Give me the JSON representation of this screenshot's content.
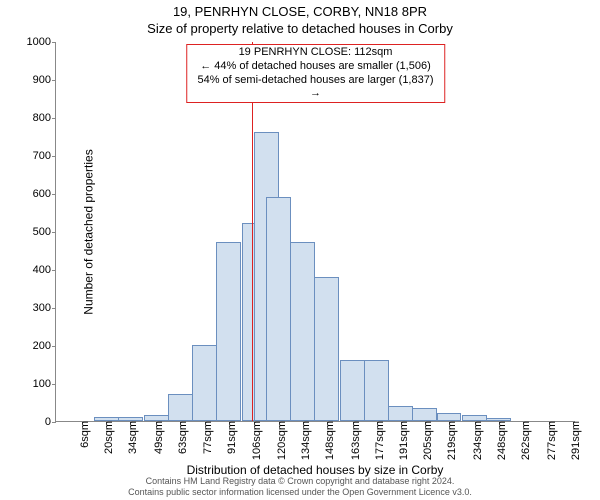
{
  "title_line1": "19, PENRHYN CLOSE, CORBY, NN18 8PR",
  "title_line2": "Size of property relative to detached houses in Corby",
  "ylabel": "Number of detached properties",
  "xlabel": "Distribution of detached houses by size in Corby",
  "footer_line1": "Contains HM Land Registry data © Crown copyright and database right 2024.",
  "footer_line2": "Contains public sector information licensed under the Open Government Licence v3.0.",
  "annotation": {
    "line1": "19 PENRHYN CLOSE: 112sqm",
    "line2": "← 44% of detached houses are smaller (1,506)",
    "line3": "54% of semi-detached houses are larger (1,837) →"
  },
  "colors": {
    "bar_fill": "#d2e0ef",
    "bar_edge": "#6b8fbf",
    "ref_line": "#d22",
    "axis": "#888",
    "text": "#000000",
    "background": "#ffffff"
  },
  "chart": {
    "type": "histogram",
    "ylim": [
      0,
      1000
    ],
    "ytick_step": 100,
    "yticks": [
      0,
      100,
      200,
      300,
      400,
      500,
      600,
      700,
      800,
      900,
      1000
    ],
    "ref_line_x": 112,
    "title_fontsize": 13,
    "label_fontsize": 12,
    "tick_fontsize": 11,
    "annotation_fontsize": 11,
    "footer_fontsize": 9,
    "bin_width": 14.5,
    "bins": [
      {
        "x": 6,
        "count": 0,
        "label": "6sqm"
      },
      {
        "x": 20,
        "count": 10,
        "label": "20sqm"
      },
      {
        "x": 34,
        "count": 10,
        "label": "34sqm"
      },
      {
        "x": 49,
        "count": 15,
        "label": "49sqm"
      },
      {
        "x": 63,
        "count": 70,
        "label": "63sqm"
      },
      {
        "x": 77,
        "count": 200,
        "label": "77sqm"
      },
      {
        "x": 91,
        "count": 470,
        "label": "91sqm"
      },
      {
        "x": 106,
        "count": 520,
        "label": "106sqm"
      },
      {
        "x": 113,
        "count": 760,
        "label": null
      },
      {
        "x": 120,
        "count": 590,
        "label": "120sqm"
      },
      {
        "x": 134,
        "count": 470,
        "label": "134sqm"
      },
      {
        "x": 148,
        "count": 380,
        "label": "148sqm"
      },
      {
        "x": 163,
        "count": 160,
        "label": "163sqm"
      },
      {
        "x": 177,
        "count": 160,
        "label": "177sqm"
      },
      {
        "x": 191,
        "count": 40,
        "label": "191sqm"
      },
      {
        "x": 205,
        "count": 35,
        "label": "205sqm"
      },
      {
        "x": 219,
        "count": 20,
        "label": "219sqm"
      },
      {
        "x": 234,
        "count": 15,
        "label": "234sqm"
      },
      {
        "x": 248,
        "count": 8,
        "label": "248sqm"
      },
      {
        "x": 262,
        "count": 0,
        "label": "262sqm"
      },
      {
        "x": 277,
        "count": 0,
        "label": "277sqm"
      },
      {
        "x": 291,
        "count": 0,
        "label": "291sqm"
      }
    ],
    "x_domain": [
      -2,
      300
    ]
  }
}
